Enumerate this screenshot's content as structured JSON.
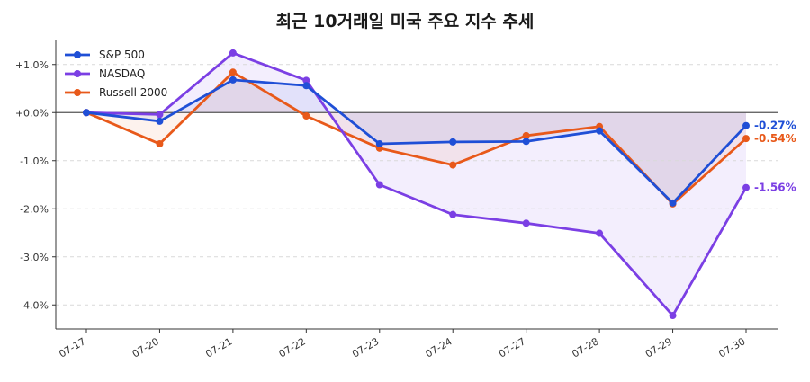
{
  "chart_data": {
    "type": "line",
    "title": "최근 10거래일 미국 주요 지수 추세",
    "xlabel": "",
    "ylabel": "",
    "categories": [
      "07-17",
      "07-20",
      "07-21",
      "07-22",
      "07-23",
      "07-24",
      "07-27",
      "07-28",
      "07-29",
      "07-30"
    ],
    "ylim": [
      -4.5,
      1.5
    ],
    "yticks": [
      1.0,
      0.0,
      -1.0,
      -2.0,
      -3.0,
      -4.0
    ],
    "ytick_labels": [
      "+1.0%",
      "+0.0%",
      "-1.0%",
      "-2.0%",
      "-3.0%",
      "-4.0%"
    ],
    "grid": true,
    "legend_position": "top-left",
    "series": [
      {
        "name": "S&P 500",
        "color": "#1f4fd6",
        "values": [
          0.0,
          -0.18,
          0.68,
          0.56,
          -0.65,
          -0.61,
          -0.6,
          -0.38,
          -1.88,
          -0.27
        ],
        "end_label": "-0.27%"
      },
      {
        "name": "NASDAQ",
        "color": "#7b3fe4",
        "values": [
          0.0,
          -0.04,
          1.24,
          0.67,
          -1.5,
          -2.12,
          -2.3,
          -2.51,
          -4.22,
          -1.56
        ],
        "end_label": "-1.56%"
      },
      {
        "name": "Russell 2000",
        "color": "#e8591a",
        "values": [
          0.0,
          -0.65,
          0.84,
          -0.07,
          -0.74,
          -1.09,
          -0.48,
          -0.29,
          -1.9,
          -0.54
        ],
        "end_label": "-0.54%"
      }
    ]
  }
}
